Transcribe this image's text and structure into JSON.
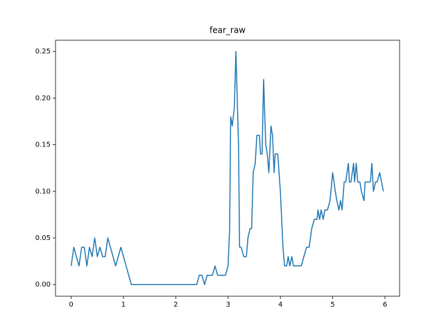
{
  "chart_data": {
    "type": "line",
    "title": "fear_raw",
    "x": [
      0,
      0.05,
      0.1,
      0.15,
      0.2,
      0.25,
      0.3,
      0.35,
      0.4,
      0.45,
      0.5,
      0.55,
      0.6,
      0.65,
      0.7,
      0.75,
      0.8,
      0.85,
      0.9,
      0.95,
      1.0,
      1.05,
      1.1,
      1.15,
      1.2,
      1.3,
      1.4,
      1.5,
      1.6,
      1.7,
      1.8,
      1.9,
      2.0,
      2.1,
      2.2,
      2.3,
      2.4,
      2.45,
      2.5,
      2.55,
      2.6,
      2.65,
      2.7,
      2.75,
      2.8,
      2.85,
      2.9,
      2.95,
      3.0,
      3.03,
      3.05,
      3.08,
      3.12,
      3.15,
      3.2,
      3.22,
      3.25,
      3.3,
      3.35,
      3.38,
      3.42,
      3.45,
      3.48,
      3.52,
      3.55,
      3.6,
      3.62,
      3.65,
      3.68,
      3.72,
      3.75,
      3.78,
      3.82,
      3.85,
      3.88,
      3.9,
      3.95,
      4.0,
      4.05,
      4.08,
      4.12,
      4.15,
      4.18,
      4.22,
      4.25,
      4.3,
      4.35,
      4.4,
      4.45,
      4.5,
      4.55,
      4.6,
      4.65,
      4.7,
      4.72,
      4.75,
      4.78,
      4.82,
      4.85,
      4.9,
      4.95,
      5.0,
      5.05,
      5.08,
      5.12,
      5.15,
      5.18,
      5.22,
      5.25,
      5.3,
      5.32,
      5.35,
      5.4,
      5.42,
      5.45,
      5.48,
      5.52,
      5.55,
      5.6,
      5.62,
      5.65,
      5.7,
      5.72,
      5.75,
      5.78,
      5.82,
      5.85,
      5.9,
      5.97
    ],
    "series": [
      {
        "color": "#1f77b4",
        "values": [
          0.02,
          0.04,
          0.03,
          0.02,
          0.04,
          0.04,
          0.02,
          0.04,
          0.03,
          0.05,
          0.03,
          0.04,
          0.03,
          0.03,
          0.05,
          0.04,
          0.03,
          0.02,
          0.03,
          0.04,
          0.03,
          0.02,
          0.01,
          0,
          0,
          0,
          0,
          0,
          0,
          0,
          0,
          0,
          0,
          0,
          0,
          0,
          0,
          0.01,
          0.01,
          0,
          0.01,
          0.01,
          0.01,
          0.02,
          0.01,
          0.01,
          0.01,
          0.01,
          0.02,
          0.06,
          0.18,
          0.17,
          0.19,
          0.25,
          0.15,
          0.04,
          0.04,
          0.03,
          0.03,
          0.05,
          0.06,
          0.06,
          0.12,
          0.13,
          0.16,
          0.16,
          0.14,
          0.14,
          0.22,
          0.15,
          0.14,
          0.12,
          0.17,
          0.16,
          0.12,
          0.14,
          0.14,
          0.1,
          0.04,
          0.02,
          0.02,
          0.03,
          0.02,
          0.03,
          0.02,
          0.02,
          0.02,
          0.02,
          0.03,
          0.04,
          0.04,
          0.06,
          0.07,
          0.07,
          0.08,
          0.07,
          0.08,
          0.07,
          0.08,
          0.08,
          0.09,
          0.12,
          0.1,
          0.09,
          0.08,
          0.09,
          0.08,
          0.11,
          0.11,
          0.13,
          0.11,
          0.11,
          0.13,
          0.11,
          0.13,
          0.11,
          0.11,
          0.1,
          0.09,
          0.11,
          0.11,
          0.11,
          0.11,
          0.13,
          0.1,
          0.11,
          0.11,
          0.12,
          0.1
        ]
      }
    ],
    "xlim": [
      -0.3,
      6.28
    ],
    "ylim": [
      -0.0125,
      0.262
    ],
    "xticks": [
      0,
      1,
      2,
      3,
      4,
      5,
      6
    ],
    "yticks": [
      {
        "value": 0,
        "label": "0.00"
      },
      {
        "value": 0.05,
        "label": "0.05"
      },
      {
        "value": 0.1,
        "label": "0.10"
      },
      {
        "value": 0.15,
        "label": "0.15"
      },
      {
        "value": 0.2,
        "label": "0.20"
      },
      {
        "value": 0.25,
        "label": "0.25"
      }
    ]
  }
}
